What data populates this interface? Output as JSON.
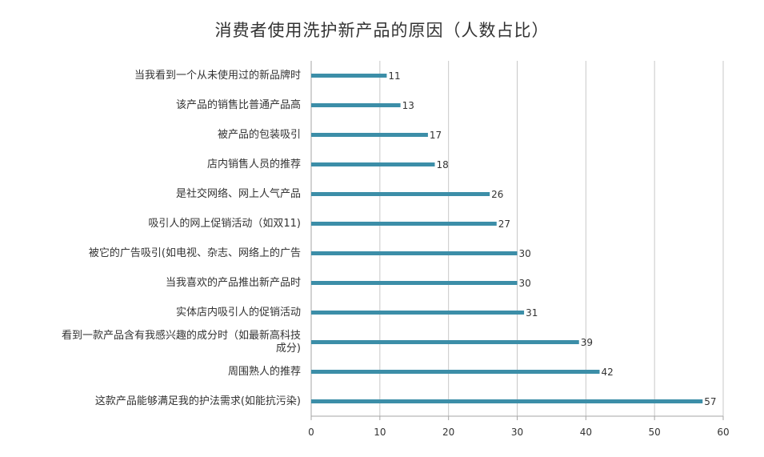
{
  "chart_data": {
    "type": "bar",
    "orientation": "horizontal",
    "title": "消费者使用洗护新产品的原因（人数占比）",
    "categories": [
      "当我看到一个从未使用过的新品牌时",
      "该产品的销售比普通产品高",
      "被产品的包装吸引",
      "店内销售人员的推荐",
      "是社交网络、网上人气产品",
      "吸引人的网上促销活动（如双11)",
      "被它的广告吸引(如电视、杂志、网络上的广告",
      "当我喜欢的产品推出新产品时",
      "实体店内吸引人的促销活动",
      "看到一款产品含有我感兴趣的成分时（如最新高科技成分)",
      "周围熟人的推荐",
      "这款产品能够满足我的护法需求(如能抗污染)"
    ],
    "category_lines": [
      [
        "当我看到一个从未使用过的新品牌时"
      ],
      [
        "该产品的销售比普通产品高"
      ],
      [
        "被产品的包装吸引"
      ],
      [
        "店内销售人员的推荐"
      ],
      [
        "是社交网络、网上人气产品"
      ],
      [
        "吸引人的网上促销活动（如双11)"
      ],
      [
        "被它的广告吸引(如电视、杂志、网络上的广告"
      ],
      [
        "当我喜欢的产品推出新产品时"
      ],
      [
        "实体店内吸引人的促销活动"
      ],
      [
        "看到一款产品含有我感兴趣的成分时（如最新高科技",
        "成分)"
      ],
      [
        "周围熟人的推荐"
      ],
      [
        "这款产品能够满足我的护法需求(如能抗污染)"
      ]
    ],
    "values": [
      11,
      13,
      17,
      18,
      26,
      27,
      30,
      30,
      31,
      39,
      42,
      57
    ],
    "xlim": [
      0,
      60
    ],
    "xticks": [
      0,
      10,
      20,
      30,
      40,
      50,
      60
    ],
    "grid": "vertical",
    "legend": "none",
    "bar_color": "#3c8ea8",
    "grid_color": "#c8c8c8",
    "axis_color": "#a6a6a6"
  }
}
